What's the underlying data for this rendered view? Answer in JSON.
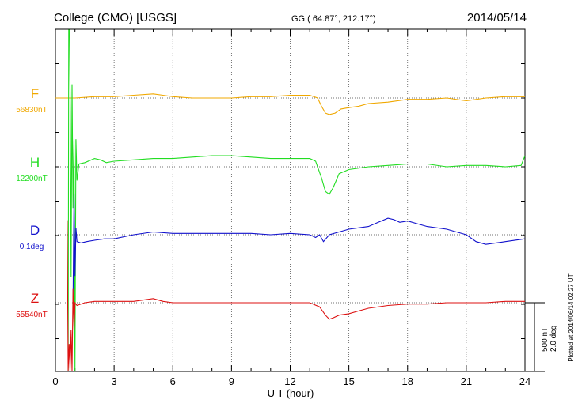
{
  "header": {
    "station": "College (CMO)  [USGS]",
    "coords": "GG ( 64.87°, 212.17°)",
    "date": "2014/05/14"
  },
  "footer": {
    "plotted": "Plotted at 2014/06/14 02:27  UT"
  },
  "scale_bar": {
    "line1": "500 nT",
    "line2": "2.0 deg"
  },
  "chart_data": {
    "type": "line",
    "xlabel": "U T (hour)",
    "xlim": [
      0,
      24
    ],
    "xticks": [
      "0",
      "3",
      "6",
      "9",
      "12",
      "15",
      "18",
      "21",
      "24"
    ],
    "grid": true,
    "scale_per_division": "500 nT / 2.0 deg",
    "series": [
      {
        "name": "F",
        "baseline_label": "56830nT",
        "color": "#f0a800",
        "x": [
          0.0,
          0.5,
          1.0,
          2.0,
          3.0,
          4.0,
          5.0,
          5.5,
          6.0,
          7.0,
          8.0,
          9.0,
          10.0,
          11.0,
          12.0,
          13.0,
          13.4,
          13.6,
          13.8,
          14.0,
          14.3,
          14.6,
          15.0,
          15.5,
          16.0,
          17.0,
          18.0,
          19.0,
          20.0,
          21.0,
          22.0,
          23.0,
          24.0
        ],
        "y": [
          0,
          0,
          0,
          10,
          10,
          20,
          30,
          20,
          10,
          0,
          0,
          0,
          10,
          10,
          20,
          20,
          0,
          -60,
          -110,
          -120,
          -110,
          -80,
          -70,
          -60,
          -40,
          -30,
          -10,
          -10,
          0,
          -20,
          0,
          10,
          10
        ]
      },
      {
        "name": "H",
        "baseline_label": "12200nT",
        "color": "#22dd22",
        "x": [
          0.65,
          0.68,
          0.72,
          0.76,
          0.8,
          0.85,
          0.9,
          0.95,
          1.0,
          1.05,
          1.1,
          1.2,
          1.5,
          2.0,
          2.3,
          2.6,
          3.0,
          4.0,
          5.0,
          6.0,
          7.0,
          8.0,
          9.0,
          10.0,
          11.0,
          12.0,
          13.0,
          13.3,
          13.6,
          13.8,
          14.0,
          14.2,
          14.5,
          15.0,
          16.0,
          17.0,
          18.0,
          19.0,
          20.0,
          21.0,
          22.0,
          23.0,
          23.8,
          24.0
        ],
        "y": [
          -2600,
          1500,
          1800,
          400,
          -800,
          600,
          -300,
          200,
          -3300,
          200,
          -100,
          20,
          30,
          60,
          50,
          30,
          40,
          50,
          60,
          60,
          70,
          80,
          80,
          70,
          60,
          60,
          60,
          40,
          -80,
          -180,
          -200,
          -150,
          -50,
          -20,
          0,
          10,
          20,
          20,
          0,
          10,
          10,
          0,
          10,
          80
        ]
      },
      {
        "name": "D",
        "baseline_label": "0.1deg",
        "color": "#1111cc",
        "x": [
          0.9,
          0.95,
          1.0,
          1.05,
          1.1,
          1.3,
          1.6,
          2.0,
          2.5,
          3.0,
          4.0,
          5.0,
          6.0,
          7.0,
          8.0,
          9.0,
          10.0,
          11.0,
          12.0,
          13.0,
          13.3,
          13.5,
          13.7,
          14.0,
          14.5,
          15.0,
          16.0,
          16.5,
          17.0,
          17.3,
          17.6,
          18.0,
          18.5,
          19.0,
          20.0,
          20.5,
          21.0,
          21.5,
          22.0,
          23.0,
          24.0
        ],
        "y": [
          -500,
          300,
          -300,
          50,
          -50,
          -60,
          -50,
          -40,
          -30,
          -30,
          0,
          20,
          10,
          10,
          10,
          10,
          10,
          0,
          10,
          0,
          -20,
          0,
          -50,
          0,
          20,
          40,
          60,
          90,
          120,
          110,
          90,
          100,
          80,
          60,
          40,
          20,
          0,
          -50,
          -70,
          -50,
          -30
        ]
      },
      {
        "name": "Z",
        "baseline_label": "55540nT",
        "color": "#dd1111",
        "x": [
          0.6,
          0.65,
          0.7,
          0.75,
          0.8,
          0.85,
          0.9,
          0.95,
          1.0,
          1.1,
          1.5,
          2.0,
          3.0,
          4.0,
          5.0,
          5.5,
          6.0,
          7.0,
          8.0,
          9.0,
          10.0,
          11.0,
          12.0,
          13.0,
          13.5,
          13.8,
          14.0,
          14.2,
          14.5,
          15.0,
          15.5,
          16.0,
          17.0,
          18.0,
          19.0,
          20.0,
          21.0,
          22.0,
          23.0,
          24.0
        ],
        "y": [
          600,
          -1300,
          -300,
          -1400,
          -200,
          -500,
          100,
          -200,
          0,
          -20,
          0,
          10,
          10,
          10,
          30,
          10,
          0,
          0,
          0,
          0,
          0,
          0,
          0,
          0,
          -30,
          -90,
          -120,
          -110,
          -90,
          -80,
          -60,
          -40,
          -20,
          -10,
          -10,
          0,
          0,
          0,
          10,
          10
        ]
      }
    ]
  }
}
